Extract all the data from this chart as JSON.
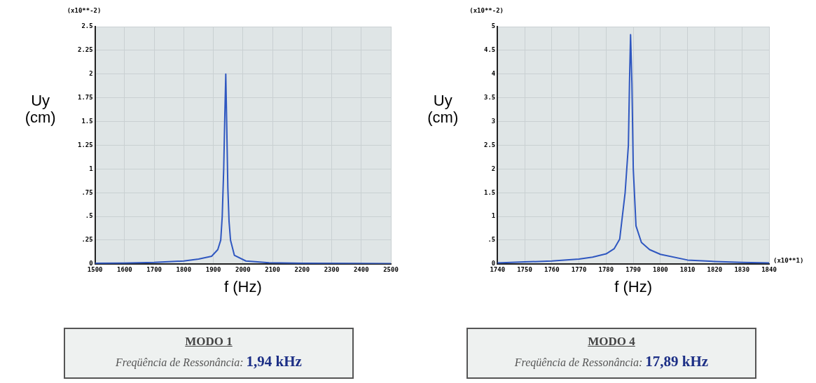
{
  "chart_data": [
    {
      "type": "line",
      "xlabel": "f (Hz)",
      "ylabel": "Uy\n(cm)",
      "annotations": [
        "(x10**-2)"
      ],
      "series": [
        {
          "color": "#2f57c0",
          "x": [
            1500,
            1600,
            1700,
            1800,
            1850,
            1894,
            1915,
            1925,
            1930,
            1935,
            1939,
            1942,
            1945,
            1949,
            1953,
            1958,
            1971,
            2010,
            2088,
            2200,
            2500
          ],
          "values": [
            0.005,
            0.008,
            0.015,
            0.03,
            0.05,
            0.08,
            0.15,
            0.25,
            0.5,
            1.0,
            1.6,
            2.0,
            1.5,
            0.8,
            0.45,
            0.25,
            0.09,
            0.03,
            0.012,
            0.005,
            0.002
          ]
        }
      ],
      "xlim": [
        1500,
        2500
      ],
      "xticks": [
        1500,
        1600,
        1700,
        1800,
        1900,
        2000,
        2100,
        2200,
        2300,
        2400,
        2500
      ],
      "ylim": [
        0,
        2.5
      ],
      "yticks": [
        0,
        {
          "value": 0.25,
          "label": ".25"
        },
        {
          "value": 0.5,
          "label": ".5"
        },
        {
          "value": 0.75,
          "label": ".75"
        },
        1,
        1.25,
        1.5,
        1.75,
        2,
        2.25,
        2.5
      ],
      "grid": true,
      "legend": false,
      "marker": "none",
      "line_style": "solid"
    },
    {
      "type": "line",
      "xlabel": "f (Hz)",
      "ylabel": "Uy\n(cm)",
      "annotations": [
        "(x10**-2)",
        "(x10**1)"
      ],
      "series": [
        {
          "color": "#2f57c0",
          "x": [
            1740,
            1750,
            1760,
            1770,
            1775,
            1780,
            1783,
            1785,
            1787,
            1788.2,
            1788.6,
            1789,
            1789.5,
            1790,
            1791,
            1793,
            1796,
            1800,
            1810,
            1820,
            1830,
            1840
          ],
          "values": [
            0.02,
            0.04,
            0.06,
            0.1,
            0.14,
            0.21,
            0.32,
            0.52,
            1.5,
            2.5,
            3.8,
            4.83,
            3.8,
            2.0,
            0.8,
            0.45,
            0.3,
            0.2,
            0.08,
            0.05,
            0.03,
            0.02
          ]
        }
      ],
      "xlim": [
        1740,
        1840
      ],
      "xticks": [
        1740,
        1750,
        1760,
        1770,
        1780,
        1790,
        1800,
        1810,
        1820,
        1830,
        1840
      ],
      "ylim": [
        0,
        5
      ],
      "yticks": [
        0,
        {
          "value": 0.5,
          "label": ".5"
        },
        1,
        1.5,
        2,
        2.5,
        3,
        3.5,
        4,
        4.5,
        5
      ],
      "grid": true,
      "legend": false,
      "marker": "none",
      "line_style": "solid"
    },
    {
      "type": "other",
      "title": "MODO 1",
      "annotations": [
        "Freqüência de Ressonância:",
        "1,94  kHz"
      ]
    },
    {
      "type": "other",
      "title": "MODO 4",
      "annotations": [
        "Freqüência de Ressonância:",
        "17,89 kHz"
      ]
    }
  ]
}
